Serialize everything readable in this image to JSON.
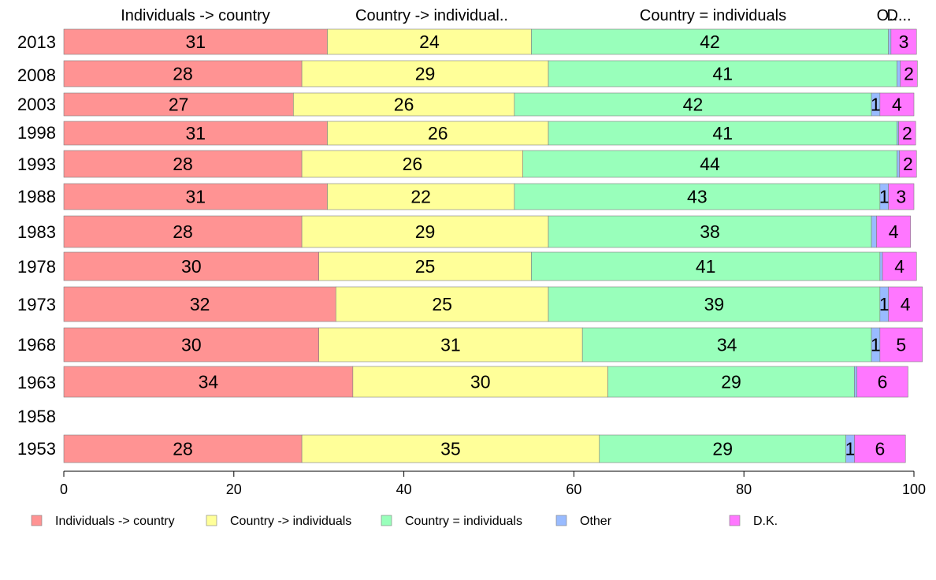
{
  "chart_data": {
    "type": "bar",
    "orientation": "horizontal",
    "stacked": true,
    "categories": [
      "2013",
      "2008",
      "2003",
      "1998",
      "1993",
      "1988",
      "1983",
      "1978",
      "1973",
      "1968",
      "1963",
      "1958",
      "1953"
    ],
    "series": [
      {
        "name": "Individuals -> country",
        "header": "Individuals -> country",
        "color": "#ff9393",
        "values": [
          31,
          28,
          27,
          31,
          28,
          31,
          28,
          30,
          32,
          30,
          34,
          null,
          28
        ]
      },
      {
        "name": "Country -> individuals",
        "header": "Country -> individual..",
        "color": "#ffff99",
        "values": [
          24,
          29,
          26,
          26,
          26,
          22,
          29,
          25,
          25,
          31,
          30,
          null,
          35
        ]
      },
      {
        "name": "Country = individuals",
        "header": "Country = individuals",
        "color": "#99ffbb",
        "values": [
          42,
          41,
          42,
          41,
          44,
          43,
          38,
          41,
          39,
          34,
          29,
          null,
          29
        ]
      },
      {
        "name": "Other",
        "header": "O..",
        "color": "#99bbff",
        "values": [
          0.3,
          0.4,
          1,
          0.2,
          0.3,
          1,
          0.6,
          0.3,
          1,
          1,
          0.3,
          null,
          1
        ]
      },
      {
        "name": "D.K.",
        "header": "D...",
        "color": "#ff77ff",
        "values": [
          3,
          2,
          4,
          2,
          2,
          3,
          4,
          4,
          4,
          5,
          6,
          null,
          6
        ]
      }
    ],
    "data_labels": [
      [
        "31",
        "24",
        "42",
        "",
        "3"
      ],
      [
        "28",
        "29",
        "41",
        "",
        "2"
      ],
      [
        "27",
        "26",
        "42",
        "1",
        "4"
      ],
      [
        "31",
        "26",
        "41",
        "",
        "2"
      ],
      [
        "28",
        "26",
        "44",
        "",
        "2"
      ],
      [
        "31",
        "22",
        "43",
        "1",
        "3"
      ],
      [
        "28",
        "29",
        "38",
        "",
        "4"
      ],
      [
        "30",
        "25",
        "41",
        "",
        "4"
      ],
      [
        "32",
        "25",
        "39",
        "1",
        "4"
      ],
      [
        "30",
        "31",
        "34",
        "1",
        "5"
      ],
      [
        "34",
        "30",
        "29",
        "",
        "6"
      ],
      [
        "",
        "",
        "",
        "",
        ""
      ],
      [
        "28",
        "35",
        "29",
        "1",
        "6"
      ]
    ],
    "xlim": [
      0,
      100
    ],
    "xticks": [
      "0",
      "20",
      "40",
      "60",
      "80",
      "100"
    ],
    "xlabel": "",
    "ylabel": "",
    "legend": [
      "Individuals -> country",
      "Country -> individuals",
      "Country = individuals",
      "Other",
      "D.K."
    ],
    "legend_position": "bottom",
    "grid": false
  }
}
